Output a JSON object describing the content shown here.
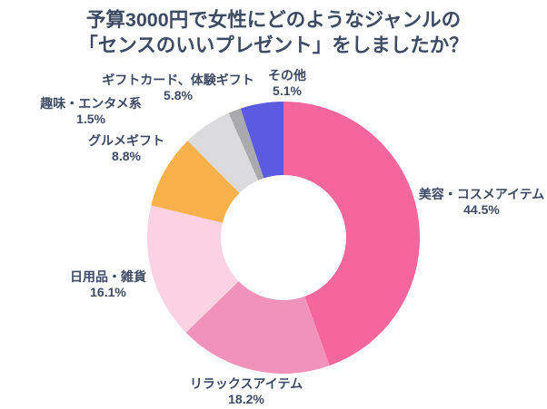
{
  "title": {
    "line1": "予算3000円で女性にどのようなジャンルの",
    "line2": "「センスのいいプレゼント」をしましたか？"
  },
  "colors": {
    "background": "#FFFFFF",
    "title_text": "#3D4A63",
    "label_text": "#3D4A63"
  },
  "chart_data": {
    "type": "pie",
    "subtype": "donut",
    "title": "予算3000円で女性にどのようなジャンルの「センスのいいプレゼント」をしましたか？",
    "unit": "%",
    "categories": [
      "美容・コスメアイテム",
      "リラックスアイテム",
      "日用品・雑貨",
      "グルメギフト",
      "ギフトカード、体験ギフト",
      "趣味・エンタメ系",
      "その他"
    ],
    "values": [
      44.5,
      18.2,
      16.1,
      8.8,
      5.8,
      1.5,
      5.1
    ],
    "colors": [
      "#F5669C",
      "#F192BA",
      "#FAD2E1",
      "#FBB14B",
      "#DBDBDD",
      "#A9A9AE",
      "#5A5BE0"
    ],
    "start_angle_deg": 0,
    "direction": "clockwise",
    "inner_radius_ratio": 0.46,
    "labels_show": "category-and-percent",
    "legend": "none",
    "grid": false
  }
}
